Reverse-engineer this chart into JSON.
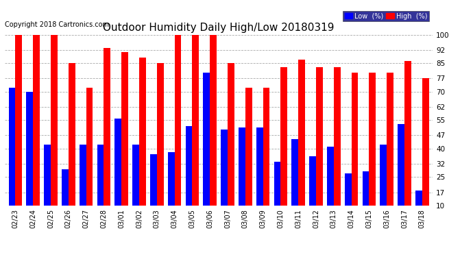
{
  "title": "Outdoor Humidity Daily High/Low 20180319",
  "copyright": "Copyright 2018 Cartronics.com",
  "dates": [
    "02/23",
    "02/24",
    "02/25",
    "02/26",
    "02/27",
    "02/28",
    "03/01",
    "03/02",
    "03/03",
    "03/04",
    "03/05",
    "03/06",
    "03/07",
    "03/08",
    "03/09",
    "03/10",
    "03/11",
    "03/12",
    "03/13",
    "03/14",
    "03/15",
    "03/16",
    "03/17",
    "03/18"
  ],
  "high": [
    100,
    100,
    100,
    85,
    72,
    93,
    91,
    88,
    85,
    100,
    100,
    100,
    85,
    72,
    72,
    83,
    87,
    83,
    83,
    80,
    80,
    80,
    86,
    77
  ],
  "low": [
    72,
    70,
    42,
    29,
    42,
    42,
    56,
    42,
    37,
    38,
    52,
    80,
    50,
    51,
    51,
    33,
    45,
    36,
    41,
    27,
    28,
    42,
    53,
    18
  ],
  "high_color": "#FF0000",
  "low_color": "#0000FF",
  "bg_color": "#FFFFFF",
  "grid_color": "#AAAAAA",
  "title_fontsize": 11,
  "ylim_min": 10,
  "ylim_max": 100,
  "yticks": [
    10,
    17,
    25,
    32,
    40,
    47,
    55,
    62,
    70,
    77,
    85,
    92,
    100
  ],
  "bar_width": 0.38,
  "legend_bg": "#000080",
  "legend_text_color": "#FFFFFF",
  "copyright_fontsize": 7,
  "tick_fontsize": 7,
  "ytick_fontsize": 7.5
}
